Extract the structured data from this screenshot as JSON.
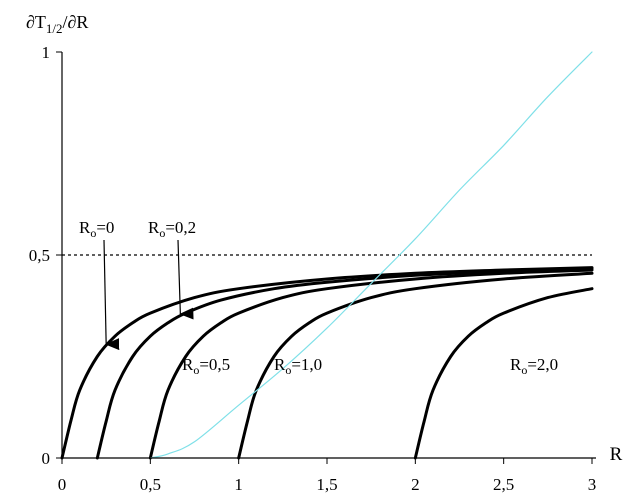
{
  "chart_data": {
    "type": "line",
    "ylabel_main": "∂T",
    "ylabel_sub": "1/2",
    "ylabel_tail": "/∂R",
    "xlabel": "R",
    "xlim": [
      0,
      3
    ],
    "ylim": [
      0,
      1
    ],
    "x_ticks": [
      {
        "value": 0,
        "label": "0"
      },
      {
        "value": 0.5,
        "label": "0,5"
      },
      {
        "value": 1,
        "label": "1"
      },
      {
        "value": 1.5,
        "label": "1,5"
      },
      {
        "value": 2,
        "label": "2"
      },
      {
        "value": 2.5,
        "label": "2,5"
      },
      {
        "value": 3,
        "label": "3"
      }
    ],
    "y_ticks": [
      {
        "value": 0,
        "label": "0"
      },
      {
        "value": 0.5,
        "label": "0,5"
      },
      {
        "value": 1,
        "label": "1"
      }
    ],
    "reference_line": {
      "y": 0.5,
      "style": "dashed"
    },
    "series": [
      {
        "R0": 0,
        "label_main": "R",
        "label_sub": "o",
        "label_tail": "=0",
        "color": "#000000",
        "x": [
          0,
          0.05,
          0.1,
          0.2,
          0.3,
          0.4,
          0.5,
          0.75,
          1,
          1.5,
          2,
          2.5,
          3
        ],
        "y": [
          0,
          0.091,
          0.167,
          0.25,
          0.3,
          0.333,
          0.357,
          0.395,
          0.417,
          0.441,
          0.455,
          0.463,
          0.469
        ]
      },
      {
        "R0": 0.2,
        "label_main": "R",
        "label_sub": "o",
        "label_tail": "=0,2",
        "color": "#000000",
        "x": [
          0.2,
          0.25,
          0.3,
          0.4,
          0.5,
          0.6,
          0.7,
          0.9,
          1.2,
          1.5,
          2,
          2.5,
          3
        ],
        "y": [
          0,
          0.091,
          0.167,
          0.25,
          0.3,
          0.333,
          0.357,
          0.389,
          0.417,
          0.433,
          0.45,
          0.46,
          0.467
        ]
      },
      {
        "R0": 0.5,
        "label_main": "R",
        "label_sub": "o",
        "label_tail": "=0,5",
        "color": "#000000",
        "x": [
          0.5,
          0.55,
          0.6,
          0.7,
          0.8,
          0.9,
          1,
          1.25,
          1.5,
          2,
          2.5,
          3
        ],
        "y": [
          0,
          0.091,
          0.167,
          0.25,
          0.3,
          0.333,
          0.357,
          0.395,
          0.417,
          0.441,
          0.455,
          0.463
        ]
      },
      {
        "R0": 1.0,
        "label_main": "R",
        "label_sub": "o",
        "label_tail": "=1,0",
        "color": "#000000",
        "x": [
          1,
          1.05,
          1.1,
          1.2,
          1.3,
          1.4,
          1.5,
          1.75,
          2,
          2.5,
          3
        ],
        "y": [
          0,
          0.091,
          0.167,
          0.25,
          0.3,
          0.333,
          0.357,
          0.395,
          0.417,
          0.441,
          0.455
        ]
      },
      {
        "R0": 2.0,
        "label_main": "R",
        "label_sub": "o",
        "label_tail": "=2,0",
        "color": "#000000",
        "x": [
          2,
          2.05,
          2.1,
          2.2,
          2.3,
          2.4,
          2.5,
          2.75,
          3
        ],
        "y": [
          0,
          0.091,
          0.167,
          0.25,
          0.3,
          0.333,
          0.357,
          0.395,
          0.417
        ]
      },
      {
        "name": "",
        "color": "#7fe0e8",
        "x": [
          0.5,
          0.6,
          0.75,
          1,
          1.25,
          1.5,
          1.75,
          2,
          2.25,
          2.5,
          2.75,
          3
        ],
        "y": [
          0,
          0.01,
          0.04,
          0.13,
          0.22,
          0.32,
          0.43,
          0.54,
          0.66,
          0.77,
          0.89,
          1.0
        ]
      }
    ],
    "arrows": [
      {
        "target_series": 0,
        "at_x": 0.25
      },
      {
        "target_series": 1,
        "at_x": 0.67
      }
    ]
  }
}
